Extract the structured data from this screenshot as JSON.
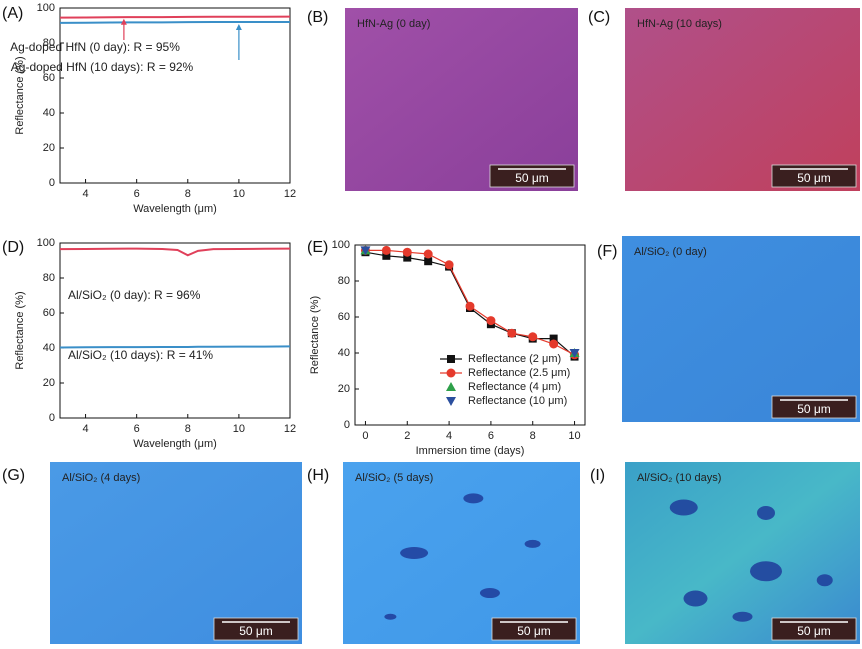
{
  "chart_data": [
    {
      "type": "line",
      "panel": "(A)",
      "x_label": "Wavelength (μm)",
      "y_label": "Reflectance (%)",
      "x": [
        3,
        4,
        5,
        6,
        7,
        8,
        9,
        10,
        11,
        12
      ],
      "xlim": [
        3,
        12
      ],
      "xticks": [
        4,
        6,
        8,
        10,
        12
      ],
      "ylim": [
        0,
        100
      ],
      "yticks": [
        0,
        20,
        40,
        60,
        80,
        100
      ],
      "series": [
        {
          "color": "#e0405a",
          "values": [
            94.5,
            94.6,
            94.7,
            94.8,
            94.8,
            94.9,
            95,
            95,
            95,
            95.1
          ]
        },
        {
          "color": "#3a8fc8",
          "values": [
            91.5,
            91.6,
            91.7,
            91.8,
            91.8,
            91.9,
            92,
            92,
            92,
            92
          ]
        }
      ],
      "annotations": [
        {
          "text": "Ag-doped HfN (0 day): R = 95%",
          "color": "#e0405a"
        },
        {
          "text": "Ag-doped HfN (10 days): R = 92%",
          "color": "#3a8fc8"
        }
      ]
    },
    {
      "type": "line",
      "panel": "(D)",
      "x_label": "Wavelength (μm)",
      "y_label": "Reflectance (%)",
      "x": [
        3,
        4,
        5,
        6,
        7,
        7.6,
        8,
        8.4,
        9,
        10,
        11,
        12
      ],
      "xlim": [
        3,
        12
      ],
      "xticks": [
        4,
        6,
        8,
        10,
        12
      ],
      "ylim": [
        0,
        100
      ],
      "yticks": [
        0,
        20,
        40,
        60,
        80,
        100
      ],
      "series": [
        {
          "color": "#e0405a",
          "values": [
            96.5,
            96.6,
            96.7,
            96.8,
            96.6,
            96,
            93,
            95.5,
            96.5,
            96.6,
            96.7,
            96.8
          ]
        },
        {
          "color": "#3a8fc8",
          "values": [
            40.3,
            40.4,
            40.5,
            40.5,
            40.6,
            40.6,
            40.6,
            40.7,
            40.7,
            40.8,
            40.8,
            40.9
          ]
        }
      ],
      "annotations": [
        {
          "text": "Al/SiO₂ (0 day): R = 96%",
          "color": "#e0405a"
        },
        {
          "text": "Al/SiO₂ (10 days): R = 41%",
          "color": "#3a8fc8"
        }
      ]
    },
    {
      "type": "line",
      "panel": "(E)",
      "x_label": "Immersion time (days)",
      "y_label": "Reflectance (%)",
      "x": [
        0,
        1,
        2,
        3,
        4,
        5,
        6,
        7,
        8,
        9,
        10
      ],
      "xlim": [
        -0.5,
        10.5
      ],
      "xticks": [
        0,
        2,
        4,
        6,
        8,
        10
      ],
      "ylim": [
        0,
        100
      ],
      "yticks": [
        0,
        20,
        40,
        60,
        80,
        100
      ],
      "legend": "lower right",
      "series": [
        {
          "name": "Reflectance (2 μm)",
          "color": "#111111",
          "marker": "square",
          "line": true,
          "values": [
            96,
            94,
            93,
            91,
            88,
            65,
            56,
            51,
            48,
            48,
            38
          ]
        },
        {
          "name": "Reflectance (2.5 μm)",
          "color": "#e53a2c",
          "marker": "circle",
          "line": true,
          "values": [
            97,
            97,
            96,
            95,
            89,
            66,
            58,
            51,
            49,
            45,
            39
          ]
        },
        {
          "name": "Reflectance (4 μm)",
          "color": "#2ea04a",
          "marker": "triangle",
          "line": false,
          "values": [
            97,
            null,
            null,
            null,
            null,
            null,
            null,
            null,
            null,
            null,
            40
          ]
        },
        {
          "name": "Reflectance (10 μm)",
          "color": "#2b4f9e",
          "marker": "down-triangle",
          "line": false,
          "values": [
            97,
            null,
            null,
            null,
            null,
            null,
            null,
            null,
            null,
            null,
            40
          ]
        }
      ]
    }
  ],
  "images": [
    {
      "panel": "(B)",
      "label": "HfN-Ag (0 day)",
      "scale": "50 μm"
    },
    {
      "panel": "(C)",
      "label": "HfN-Ag (10 days)",
      "scale": "50 μm"
    },
    {
      "panel": "(F)",
      "label": "Al/SiO₂ (0 day)",
      "scale": "50 μm"
    },
    {
      "panel": "(G)",
      "label": "Al/SiO₂ (4 days)",
      "scale": "50 μm"
    },
    {
      "panel": "(H)",
      "label": "Al/SiO₂ (5 days)",
      "scale": "50 μm"
    },
    {
      "panel": "(I)",
      "label": "Al/SiO₂ (10 days)",
      "scale": "50 μm"
    }
  ]
}
